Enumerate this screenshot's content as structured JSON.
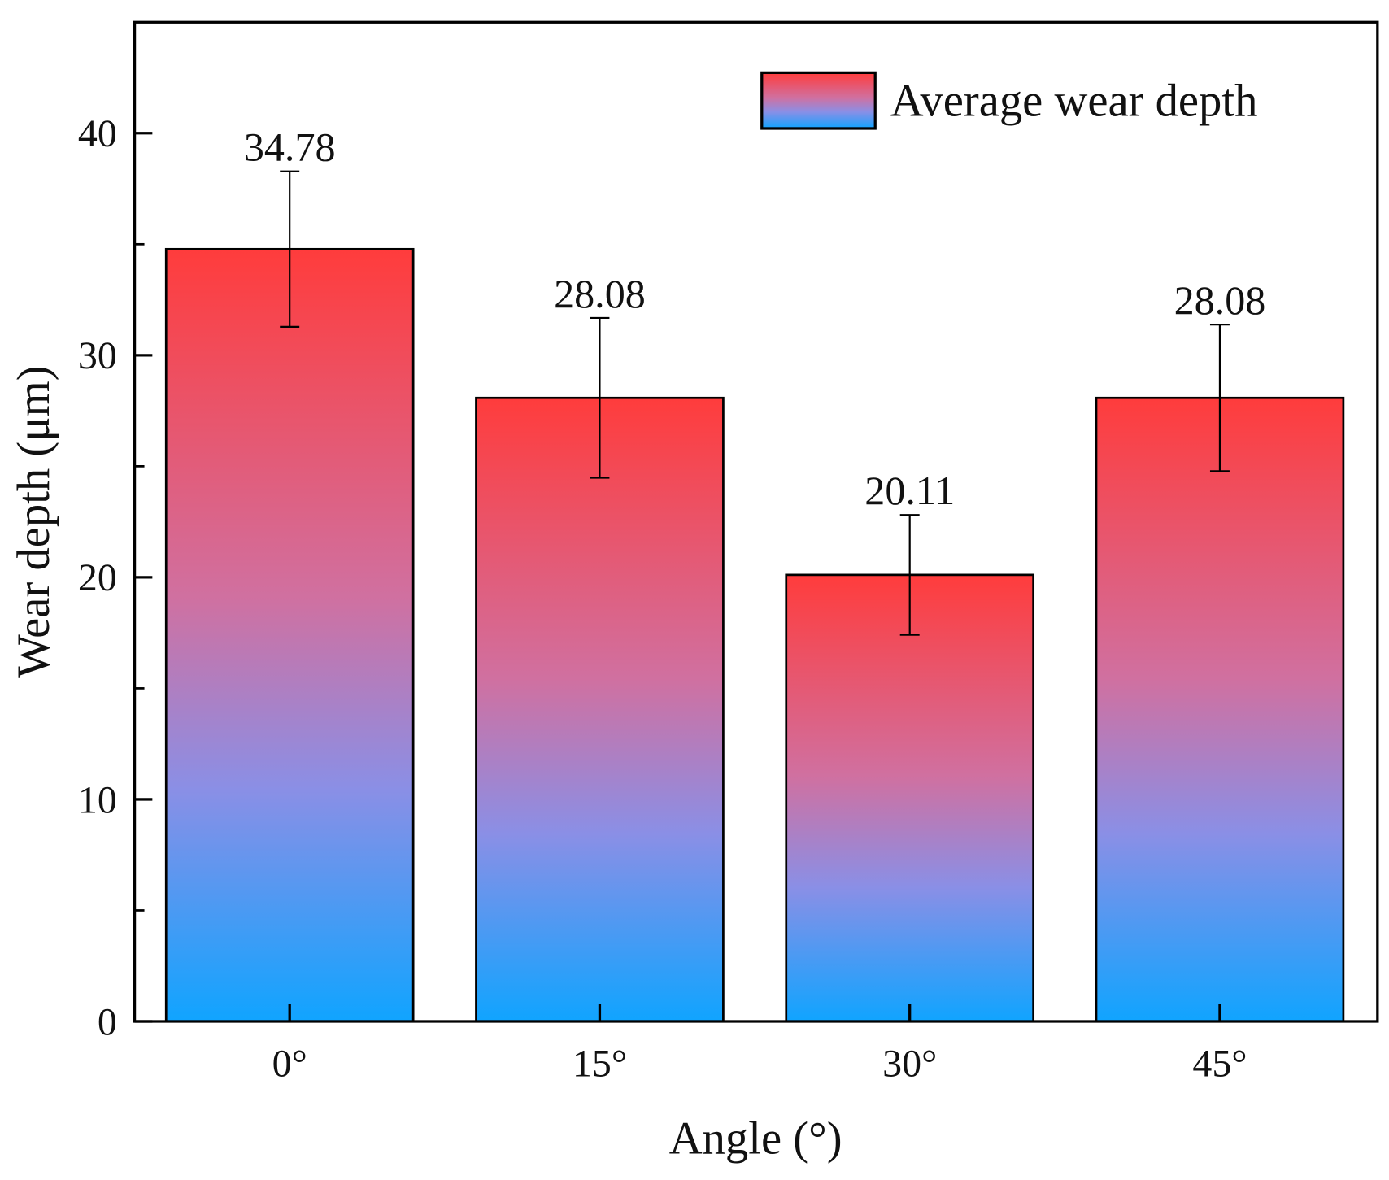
{
  "chart_data": {
    "type": "bar",
    "title": "",
    "xlabel": "Angle (°)",
    "ylabel": "Wear depth (μm)",
    "categories": [
      "0°",
      "15°",
      "30°",
      "45°"
    ],
    "series": [
      {
        "name": "Average wear depth",
        "values": [
          34.78,
          28.08,
          20.11,
          28.08
        ],
        "errors": [
          3.5,
          3.6,
          2.7,
          3.3
        ],
        "data_labels": [
          "34.78",
          "28.08",
          "20.11",
          "28.08"
        ]
      }
    ],
    "ylim": [
      0,
      45
    ],
    "yticks": [
      0,
      10,
      20,
      30,
      40
    ],
    "ytick_labels": [
      "0",
      "10",
      "20",
      "30",
      "40"
    ],
    "grid": false,
    "legend": "top-right",
    "colors": {
      "top": "#ff3c3c",
      "mid": "#b07fc8",
      "bottom": "#10a4ff",
      "axis": "#000000"
    }
  }
}
